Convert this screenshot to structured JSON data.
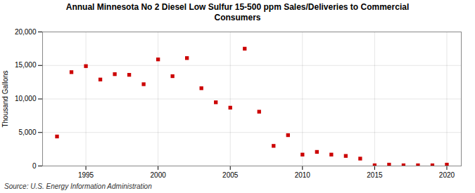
{
  "chart_data": {
    "type": "scatter",
    "title": "Annual Minnesota No 2 Diesel Low Sulfur 15-500 ppm Sales/Deliveries to Commercial\nConsumers",
    "ylabel": "Thousand Gallons",
    "source": "Source: U.S. Energy Information Administration",
    "x": [
      1993,
      1994,
      1995,
      1996,
      1997,
      1998,
      1999,
      2000,
      2001,
      2002,
      2003,
      2004,
      2005,
      2006,
      2007,
      2008,
      2009,
      2010,
      2011,
      2012,
      2013,
      2014,
      2015,
      2016,
      2017,
      2018,
      2019,
      2020
    ],
    "values": [
      4400,
      14000,
      14900,
      12900,
      13700,
      13600,
      12200,
      15900,
      13400,
      16100,
      11600,
      9500,
      8700,
      17500,
      8100,
      3000,
      4600,
      1700,
      2100,
      1700,
      1500,
      1100,
      100,
      200,
      100,
      100,
      100,
      200
    ],
    "color": "#cc0000",
    "marker": "square",
    "xlim": [
      1992,
      2021
    ],
    "xticks": [
      1995,
      2000,
      2005,
      2010,
      2015,
      2020
    ],
    "ylim": [
      0,
      20000
    ],
    "yticks": [
      0,
      {
        "value": 5000,
        "label": "5,000"
      },
      {
        "value": 10000,
        "label": "10,000"
      },
      {
        "value": 15000,
        "label": "15,000"
      },
      {
        "value": 20000,
        "label": "20,000"
      }
    ],
    "grid": true
  }
}
